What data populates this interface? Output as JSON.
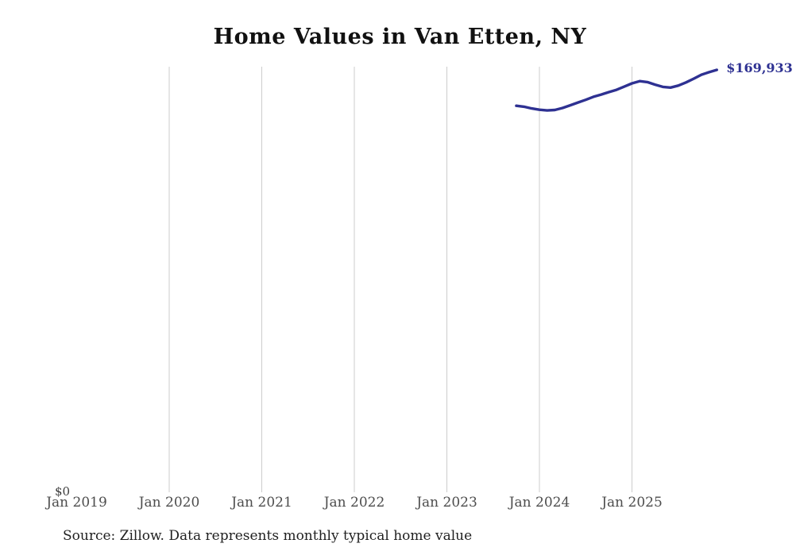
{
  "chart": {
    "title": "Home Values in Van Etten, NY",
    "end_label": "$169,933",
    "y_zero_label": "$0",
    "source_note": "Source: Zillow. Data represents monthly typical home value"
  },
  "colors": {
    "line": "#2e3192",
    "grid": "#cccccc",
    "tick_label": "#4d4d4d",
    "title": "#111111",
    "background": "#ffffff"
  },
  "chart_data": {
    "type": "line",
    "title": "Home Values in Van Etten, NY",
    "xlabel": "",
    "ylabel": "",
    "y_axis": {
      "min_label": "$0",
      "min": 0,
      "max": 171000,
      "gridlines": false
    },
    "x_axis": {
      "range": [
        "2019-01",
        "2025-12"
      ],
      "vertical_gridlines": true
    },
    "x_ticks": [
      {
        "label": "Jan 2019",
        "date": "2019-01"
      },
      {
        "label": "Jan 2020",
        "date": "2020-01"
      },
      {
        "label": "Jan 2021",
        "date": "2021-01"
      },
      {
        "label": "Jan 2022",
        "date": "2022-01"
      },
      {
        "label": "Jan 2023",
        "date": "2023-01"
      },
      {
        "label": "Jan 2024",
        "date": "2024-01"
      },
      {
        "label": "Jan 2025",
        "date": "2025-01"
      }
    ],
    "gridline_dates": [
      "2020-01",
      "2021-01",
      "2022-01",
      "2023-01",
      "2024-01",
      "2025-01"
    ],
    "series": [
      {
        "name": "Monthly typical home value",
        "end_annotation": "$169,933",
        "points": [
          {
            "date": "2023-10",
            "value": 155500
          },
          {
            "date": "2023-11",
            "value": 155100
          },
          {
            "date": "2023-12",
            "value": 154400
          },
          {
            "date": "2024-01",
            "value": 153900
          },
          {
            "date": "2024-02",
            "value": 153600
          },
          {
            "date": "2024-03",
            "value": 153800
          },
          {
            "date": "2024-04",
            "value": 154600
          },
          {
            "date": "2024-05",
            "value": 155700
          },
          {
            "date": "2024-06",
            "value": 156800
          },
          {
            "date": "2024-07",
            "value": 157900
          },
          {
            "date": "2024-08",
            "value": 159100
          },
          {
            "date": "2024-09",
            "value": 160000
          },
          {
            "date": "2024-10",
            "value": 161000
          },
          {
            "date": "2024-11",
            "value": 161900
          },
          {
            "date": "2024-12",
            "value": 163200
          },
          {
            "date": "2025-01",
            "value": 164500
          },
          {
            "date": "2025-02",
            "value": 165400
          },
          {
            "date": "2025-03",
            "value": 165000
          },
          {
            "date": "2025-04",
            "value": 164000
          },
          {
            "date": "2025-05",
            "value": 163100
          },
          {
            "date": "2025-06",
            "value": 162800
          },
          {
            "date": "2025-07",
            "value": 163600
          },
          {
            "date": "2025-08",
            "value": 164900
          },
          {
            "date": "2025-09",
            "value": 166400
          },
          {
            "date": "2025-10",
            "value": 168000
          },
          {
            "date": "2025-11",
            "value": 169000
          },
          {
            "date": "2025-12",
            "value": 169933
          }
        ]
      }
    ]
  }
}
